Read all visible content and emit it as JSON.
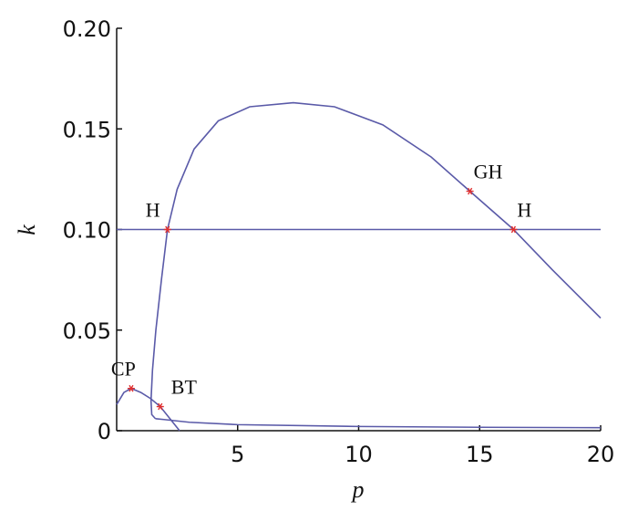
{
  "chart_data": {
    "type": "line",
    "xlabel": "p",
    "ylabel": "k",
    "xlim": [
      0,
      20
    ],
    "ylim": [
      0,
      0.2
    ],
    "xticks": [
      5,
      10,
      15,
      20
    ],
    "yticks": [
      0,
      0.05,
      {
        "value": 0.1,
        "label": "0.10"
      },
      0.15,
      {
        "value": 0.2,
        "label": "0.20"
      }
    ],
    "series": [
      {
        "color": "#5a5aa8",
        "x": [
          0,
          20
        ],
        "values": [
          0.1,
          0.1
        ]
      },
      {
        "color": "#5a5aa8",
        "x": [
          1.6,
          1.45,
          1.42,
          1.48,
          1.62,
          1.85,
          2.1,
          2.5,
          3.2,
          4.2,
          5.5,
          7.3,
          9,
          11,
          13,
          14.6,
          16.4,
          18,
          20
        ],
        "values": [
          0.006,
          0.008,
          0.015,
          0.03,
          0.05,
          0.075,
          0.1,
          0.12,
          0.14,
          0.154,
          0.161,
          0.163,
          0.161,
          0.152,
          0.136,
          0.119,
          0.1,
          0.08,
          0.056
        ]
      },
      {
        "color": "#5a5aa8",
        "x": [
          1.6,
          2,
          3,
          5,
          10,
          15,
          20
        ],
        "values": [
          0.006,
          0.0055,
          0.0042,
          0.003,
          0.0021,
          0.0017,
          0.0015
        ]
      },
      {
        "color": "#5a5aa8",
        "x": [
          0,
          0.3,
          0.6,
          1,
          1.4,
          1.8,
          2.2,
          2.6
        ],
        "values": [
          0.013,
          0.019,
          0.021,
          0.019,
          0.016,
          0.012,
          0.006,
          0
        ]
      }
    ],
    "points_color": "#e03030",
    "points": [
      {
        "label": "CP",
        "x": 0.6,
        "y": 0.021
      },
      {
        "label": "BT",
        "x": 1.8,
        "y": 0.012
      },
      {
        "label": "H",
        "x": 2.1,
        "y": 0.1
      },
      {
        "label": "GH",
        "x": 14.6,
        "y": 0.119
      },
      {
        "label": "H",
        "x": 16.4,
        "y": 0.1
      }
    ]
  }
}
